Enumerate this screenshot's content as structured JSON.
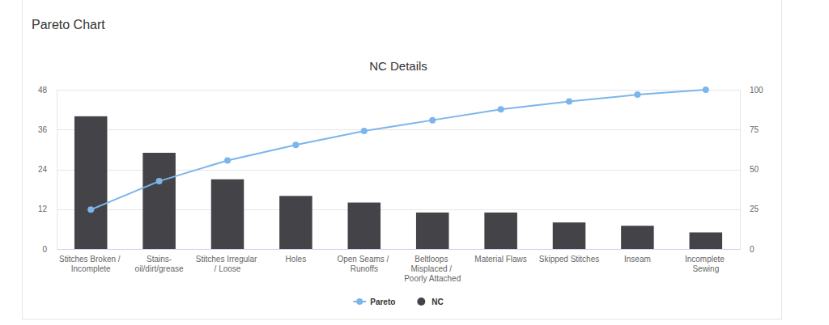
{
  "header": {
    "title": "Pareto Chart"
  },
  "chart_data": {
    "type": "bar",
    "title": "NC Details",
    "categories": [
      "Stitches Broken / Incomplete",
      "Stains-oil/dirt/grease",
      "Stitches Irregular / Loose",
      "Holes",
      "Open Seams / Runoffs",
      "Beltloops Misplaced / Poorly Attached",
      "Material Flaws",
      "Skipped Stitches",
      "Inseam",
      "Incomplete Sewing"
    ],
    "series": [
      {
        "name": "Pareto",
        "type": "line",
        "axis": "y2",
        "color": "#7cb5ec",
        "marker": "circle",
        "values": [
          24.7,
          42.6,
          55.6,
          65.4,
          74.1,
          80.9,
          87.7,
          92.6,
          96.9,
          100
        ]
      },
      {
        "name": "NC",
        "type": "bar",
        "color": "#434348",
        "values": [
          40,
          29,
          21,
          16,
          14,
          11,
          11,
          8,
          7,
          5
        ]
      }
    ],
    "ylim": [
      0,
      48
    ],
    "yticks": [
      0,
      12,
      24,
      36,
      48
    ],
    "y2lim": [
      0,
      100
    ],
    "y2ticks": [
      0,
      25,
      50,
      75,
      100
    ],
    "grid": true,
    "legend": "bottom"
  }
}
